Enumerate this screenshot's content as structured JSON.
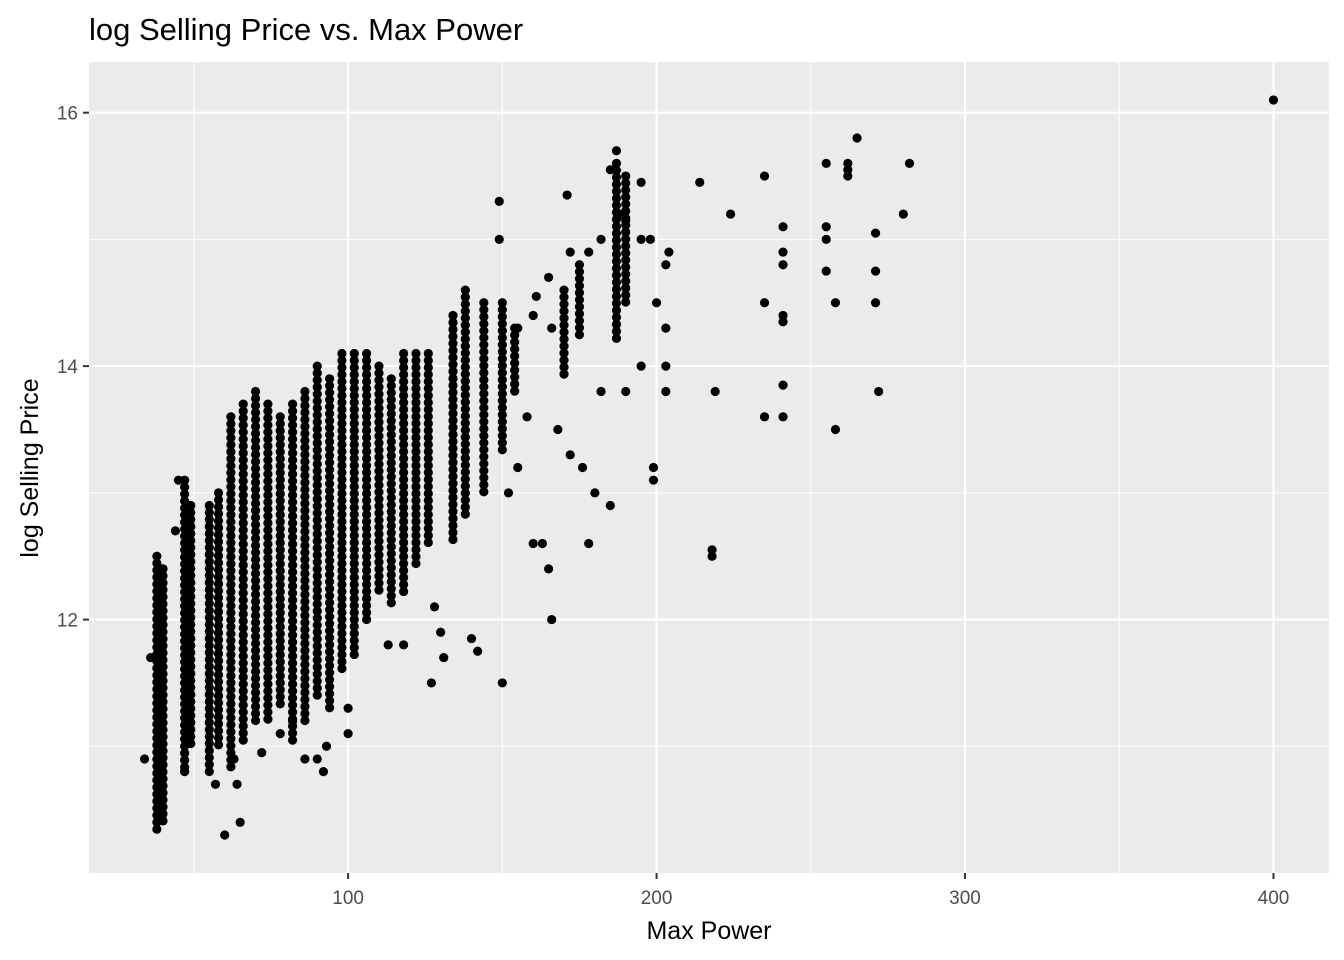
{
  "chart_data": {
    "type": "scatter",
    "title": "log Selling Price vs. Max Power",
    "xlabel": "Max Power",
    "ylabel": "log Selling Price",
    "xlim": [
      16,
      418
    ],
    "ylim": [
      10,
      16.4
    ],
    "x_ticks": [
      100,
      200,
      300,
      400
    ],
    "x_tick_labels": [
      "100",
      "200",
      "300",
      "400"
    ],
    "x_minor_ticks": [
      50,
      150,
      250,
      350
    ],
    "y_ticks": [
      12,
      14,
      16
    ],
    "y_tick_labels": [
      "12",
      "14",
      "16"
    ],
    "y_minor_ticks": [
      11,
      13,
      15
    ],
    "grid": true,
    "background": "#ebebeb",
    "point_color": "#000000",
    "clusters": [
      {
        "x": 38,
        "ymin": 10.3,
        "ymax": 12.5
      },
      {
        "x": 40,
        "ymin": 10.4,
        "ymax": 12.4
      },
      {
        "x": 47,
        "ymin": 10.8,
        "ymax": 13.1
      },
      {
        "x": 49,
        "ymin": 11.0,
        "ymax": 12.9
      },
      {
        "x": 55,
        "ymin": 10.8,
        "ymax": 12.9
      },
      {
        "x": 58,
        "ymin": 11.0,
        "ymax": 13.0
      },
      {
        "x": 62,
        "ymin": 10.8,
        "ymax": 13.6
      },
      {
        "x": 66,
        "ymin": 11.0,
        "ymax": 13.7
      },
      {
        "x": 70,
        "ymin": 11.2,
        "ymax": 13.8
      },
      {
        "x": 74,
        "ymin": 11.2,
        "ymax": 13.7
      },
      {
        "x": 78,
        "ymin": 11.3,
        "ymax": 13.6
      },
      {
        "x": 82,
        "ymin": 11.0,
        "ymax": 13.7
      },
      {
        "x": 86,
        "ymin": 11.2,
        "ymax": 13.8
      },
      {
        "x": 90,
        "ymin": 11.4,
        "ymax": 14.0
      },
      {
        "x": 94,
        "ymin": 11.3,
        "ymax": 13.9
      },
      {
        "x": 98,
        "ymin": 11.6,
        "ymax": 14.1
      },
      {
        "x": 102,
        "ymin": 11.7,
        "ymax": 14.1
      },
      {
        "x": 106,
        "ymin": 12.0,
        "ymax": 14.1
      },
      {
        "x": 110,
        "ymin": 12.2,
        "ymax": 14.0
      },
      {
        "x": 114,
        "ymin": 12.1,
        "ymax": 13.9
      },
      {
        "x": 118,
        "ymin": 12.2,
        "ymax": 14.1
      },
      {
        "x": 122,
        "ymin": 12.4,
        "ymax": 14.1
      },
      {
        "x": 126,
        "ymin": 12.6,
        "ymax": 14.1
      },
      {
        "x": 134,
        "ymin": 12.6,
        "ymax": 14.4
      },
      {
        "x": 138,
        "ymin": 12.8,
        "ymax": 14.6
      },
      {
        "x": 144,
        "ymin": 13.0,
        "ymax": 14.5
      },
      {
        "x": 150,
        "ymin": 13.3,
        "ymax": 14.5
      },
      {
        "x": 154,
        "ymin": 13.8,
        "ymax": 14.3
      },
      {
        "x": 170,
        "ymin": 13.9,
        "ymax": 14.6
      },
      {
        "x": 175,
        "ymin": 14.2,
        "ymax": 14.8
      },
      {
        "x": 187,
        "ymin": 14.2,
        "ymax": 15.6
      },
      {
        "x": 190,
        "ymin": 14.5,
        "ymax": 15.5
      }
    ],
    "points": [
      [
        34,
        10.9
      ],
      [
        36,
        11.7
      ],
      [
        44,
        12.7
      ],
      [
        45,
        13.1
      ],
      [
        47,
        10.8
      ],
      [
        57,
        10.7
      ],
      [
        60,
        10.3
      ],
      [
        63,
        10.9
      ],
      [
        64,
        10.7
      ],
      [
        65,
        10.4
      ],
      [
        72,
        10.95
      ],
      [
        78,
        11.1
      ],
      [
        82,
        11.2
      ],
      [
        86,
        10.9
      ],
      [
        90,
        10.9
      ],
      [
        92,
        10.8
      ],
      [
        93,
        11.0
      ],
      [
        100,
        11.3
      ],
      [
        100,
        11.1
      ],
      [
        113,
        11.8
      ],
      [
        118,
        11.8
      ],
      [
        127,
        11.5
      ],
      [
        128,
        12.1
      ],
      [
        130,
        11.9
      ],
      [
        131,
        11.7
      ],
      [
        140,
        11.85
      ],
      [
        142,
        11.75
      ],
      [
        150,
        11.5
      ],
      [
        152,
        13.0
      ],
      [
        155,
        13.2
      ],
      [
        158,
        13.6
      ],
      [
        160,
        12.6
      ],
      [
        163,
        12.6
      ],
      [
        165,
        12.4
      ],
      [
        166,
        12.0
      ],
      [
        168,
        13.5
      ],
      [
        172,
        13.3
      ],
      [
        176,
        13.2
      ],
      [
        178,
        12.6
      ],
      [
        180,
        13.0
      ],
      [
        182,
        13.8
      ],
      [
        185,
        12.9
      ],
      [
        190,
        13.8
      ],
      [
        195,
        14.0
      ],
      [
        199,
        13.2
      ],
      [
        199,
        13.1
      ],
      [
        200,
        14.5
      ],
      [
        203,
        14.3
      ],
      [
        203,
        13.8
      ],
      [
        203,
        14.0
      ],
      [
        203,
        14.8
      ],
      [
        204,
        14.9
      ],
      [
        214,
        15.45
      ],
      [
        218,
        12.55
      ],
      [
        218,
        12.5
      ],
      [
        219,
        13.8
      ],
      [
        224,
        15.2
      ],
      [
        235,
        15.5
      ],
      [
        235,
        14.5
      ],
      [
        235,
        13.6
      ],
      [
        241,
        15.1
      ],
      [
        241,
        14.9
      ],
      [
        241,
        14.8
      ],
      [
        241,
        14.4
      ],
      [
        241,
        14.35
      ],
      [
        241,
        13.85
      ],
      [
        241,
        13.6
      ],
      [
        255,
        15.6
      ],
      [
        255,
        15.1
      ],
      [
        255,
        15.0
      ],
      [
        255,
        14.75
      ],
      [
        258,
        14.5
      ],
      [
        258,
        13.5
      ],
      [
        262,
        15.6
      ],
      [
        262,
        15.55
      ],
      [
        262,
        15.5
      ],
      [
        265,
        15.8
      ],
      [
        271,
        15.05
      ],
      [
        271,
        14.75
      ],
      [
        271,
        14.5
      ],
      [
        272,
        13.8
      ],
      [
        280,
        15.2
      ],
      [
        282,
        15.6
      ],
      [
        400,
        16.1
      ],
      [
        187,
        15.7
      ],
      [
        185,
        15.55
      ],
      [
        195,
        15.45
      ],
      [
        171,
        15.35
      ],
      [
        149,
        15.3
      ],
      [
        149,
        15.0
      ],
      [
        188,
        15.2
      ],
      [
        190,
        15.15
      ],
      [
        195,
        15.0
      ],
      [
        198,
        15.0
      ],
      [
        182,
        15.0
      ],
      [
        178,
        14.9
      ],
      [
        172,
        14.9
      ],
      [
        165,
        14.7
      ],
      [
        161,
        14.55
      ],
      [
        155,
        14.3
      ],
      [
        160,
        14.4
      ],
      [
        166,
        14.3
      ]
    ]
  }
}
